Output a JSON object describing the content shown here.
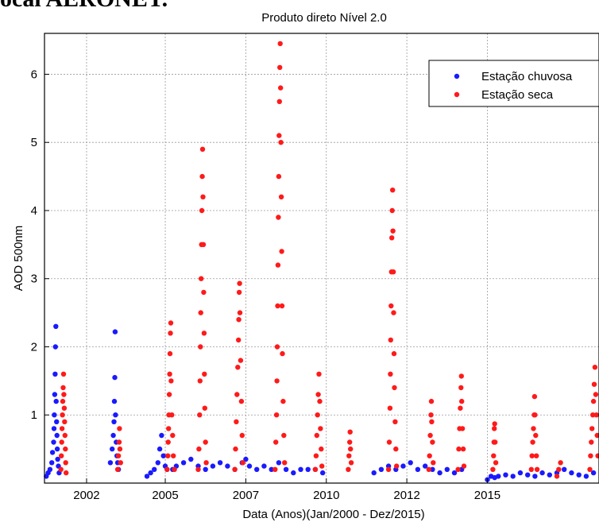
{
  "caption_fragment": "ocal AERONET.",
  "chart_data": {
    "type": "scatter",
    "title": "Produto direto Nível 2.0",
    "xlabel": "Data (Anos)(Jan/2000 - Dez/2015)",
    "ylabel": "AOD 500nm",
    "xlim": [
      2000.4,
      2015.55
    ],
    "ylim": [
      0,
      6.6
    ],
    "x_ticks": [
      {
        "value": 2001.55,
        "label": "2002"
      },
      {
        "value": 2003.7,
        "label": "2005"
      },
      {
        "value": 2005.9,
        "label": "2007"
      },
      {
        "value": 2008.1,
        "label": "2010"
      },
      {
        "value": 2010.3,
        "label": "2012"
      },
      {
        "value": 2012.5,
        "label": "2015"
      }
    ],
    "y_ticks": [
      1,
      2,
      3,
      4,
      5,
      6
    ],
    "grid": true,
    "legend_position": "top-right",
    "colors": {
      "rainy": "#1a1aff",
      "dry": "#ff1a1a"
    },
    "series": [
      {
        "name": "Estação chuvosa",
        "color": "#1a1aff",
        "points": [
          [
            2000.45,
            0.1
          ],
          [
            2000.5,
            0.15
          ],
          [
            2000.55,
            0.2
          ],
          [
            2000.6,
            0.3
          ],
          [
            2000.62,
            0.45
          ],
          [
            2000.65,
            0.6
          ],
          [
            2000.66,
            0.8
          ],
          [
            2000.67,
            1.0
          ],
          [
            2000.68,
            1.3
          ],
          [
            2000.69,
            1.6
          ],
          [
            2000.7,
            2.0
          ],
          [
            2000.71,
            2.3
          ],
          [
            2000.72,
            1.2
          ],
          [
            2000.73,
            0.9
          ],
          [
            2000.74,
            0.7
          ],
          [
            2000.75,
            0.5
          ],
          [
            2000.76,
            0.35
          ],
          [
            2000.78,
            0.25
          ],
          [
            2000.8,
            0.15
          ],
          [
            2002.2,
            0.3
          ],
          [
            2002.25,
            0.5
          ],
          [
            2002.28,
            0.7
          ],
          [
            2002.3,
            0.9
          ],
          [
            2002.31,
            1.2
          ],
          [
            2002.32,
            1.55
          ],
          [
            2002.33,
            2.22
          ],
          [
            2002.34,
            1.0
          ],
          [
            2002.36,
            0.6
          ],
          [
            2002.38,
            0.4
          ],
          [
            2002.4,
            0.3
          ],
          [
            2002.42,
            0.2
          ],
          [
            2003.2,
            0.1
          ],
          [
            2003.3,
            0.15
          ],
          [
            2003.4,
            0.2
          ],
          [
            2003.5,
            0.3
          ],
          [
            2003.55,
            0.5
          ],
          [
            2003.6,
            0.7
          ],
          [
            2003.65,
            0.4
          ],
          [
            2003.7,
            0.25
          ],
          [
            2003.75,
            0.2
          ],
          [
            2003.9,
            0.2
          ],
          [
            2004.0,
            0.25
          ],
          [
            2004.2,
            0.3
          ],
          [
            2004.4,
            0.35
          ],
          [
            2004.6,
            0.25
          ],
          [
            2004.8,
            0.2
          ],
          [
            2005.0,
            0.25
          ],
          [
            2005.2,
            0.3
          ],
          [
            2005.4,
            0.25
          ],
          [
            2005.6,
            0.2
          ],
          [
            2005.8,
            0.3
          ],
          [
            2005.9,
            0.35
          ],
          [
            2006.0,
            0.25
          ],
          [
            2006.2,
            0.2
          ],
          [
            2006.4,
            0.25
          ],
          [
            2006.6,
            0.2
          ],
          [
            2006.8,
            0.3
          ],
          [
            2007.0,
            0.2
          ],
          [
            2007.2,
            0.15
          ],
          [
            2007.4,
            0.2
          ],
          [
            2007.6,
            0.2
          ],
          [
            2007.8,
            0.2
          ],
          [
            2008.0,
            0.15
          ],
          [
            2009.4,
            0.15
          ],
          [
            2009.6,
            0.2
          ],
          [
            2009.8,
            0.25
          ],
          [
            2010.0,
            0.2
          ],
          [
            2010.2,
            0.25
          ],
          [
            2010.4,
            0.3
          ],
          [
            2010.6,
            0.2
          ],
          [
            2010.8,
            0.25
          ],
          [
            2011.0,
            0.2
          ],
          [
            2011.2,
            0.15
          ],
          [
            2011.4,
            0.2
          ],
          [
            2011.6,
            0.15
          ],
          [
            2011.8,
            0.2
          ],
          [
            2012.5,
            0.05
          ],
          [
            2012.6,
            0.1
          ],
          [
            2012.7,
            0.08
          ],
          [
            2012.8,
            0.1
          ],
          [
            2013.0,
            0.12
          ],
          [
            2013.2,
            0.1
          ],
          [
            2013.4,
            0.15
          ],
          [
            2013.6,
            0.12
          ],
          [
            2013.8,
            0.1
          ],
          [
            2014.0,
            0.15
          ],
          [
            2014.2,
            0.12
          ],
          [
            2014.4,
            0.15
          ],
          [
            2014.6,
            0.2
          ],
          [
            2014.8,
            0.15
          ],
          [
            2015.0,
            0.12
          ],
          [
            2015.2,
            0.1
          ],
          [
            2015.4,
            0.15
          ]
        ]
      },
      {
        "name": "Estação seca",
        "color": "#ff1a1a",
        "points": [
          [
            2000.85,
            0.2
          ],
          [
            2000.86,
            0.4
          ],
          [
            2000.87,
            0.6
          ],
          [
            2000.88,
            0.8
          ],
          [
            2000.89,
            1.0
          ],
          [
            2000.9,
            1.2
          ],
          [
            2000.91,
            1.4
          ],
          [
            2000.92,
            1.6
          ],
          [
            2000.93,
            1.3
          ],
          [
            2000.94,
            1.1
          ],
          [
            2000.95,
            0.9
          ],
          [
            2000.96,
            0.7
          ],
          [
            2000.97,
            0.5
          ],
          [
            2000.98,
            0.3
          ],
          [
            2000.99,
            0.15
          ],
          [
            2002.4,
            0.2
          ],
          [
            2002.42,
            0.4
          ],
          [
            2002.44,
            0.6
          ],
          [
            2002.45,
            0.8
          ],
          [
            2002.46,
            0.5
          ],
          [
            2002.48,
            0.3
          ],
          [
            2003.75,
            0.2
          ],
          [
            2003.77,
            0.4
          ],
          [
            2003.78,
            0.6
          ],
          [
            2003.79,
            0.8
          ],
          [
            2003.8,
            1.0
          ],
          [
            2003.81,
            1.3
          ],
          [
            2003.82,
            1.6
          ],
          [
            2003.83,
            1.9
          ],
          [
            2003.84,
            2.2
          ],
          [
            2003.85,
            2.35
          ],
          [
            2003.86,
            1.5
          ],
          [
            2003.88,
            1.0
          ],
          [
            2003.9,
            0.7
          ],
          [
            2003.92,
            0.4
          ],
          [
            2003.95,
            0.2
          ],
          [
            2004.6,
            0.2
          ],
          [
            2004.62,
            0.5
          ],
          [
            2004.64,
            1.0
          ],
          [
            2004.65,
            1.5
          ],
          [
            2004.66,
            2.0
          ],
          [
            2004.67,
            2.5
          ],
          [
            2004.68,
            3.0
          ],
          [
            2004.69,
            3.5
          ],
          [
            2004.7,
            4.0
          ],
          [
            2004.71,
            4.5
          ],
          [
            2004.72,
            4.9
          ],
          [
            2004.73,
            4.2
          ],
          [
            2004.74,
            3.5
          ],
          [
            2004.75,
            2.8
          ],
          [
            2004.76,
            2.2
          ],
          [
            2004.77,
            1.6
          ],
          [
            2004.78,
            1.1
          ],
          [
            2004.8,
            0.6
          ],
          [
            2004.82,
            0.3
          ],
          [
            2005.6,
            0.2
          ],
          [
            2005.62,
            0.5
          ],
          [
            2005.64,
            0.9
          ],
          [
            2005.66,
            1.3
          ],
          [
            2005.68,
            1.7
          ],
          [
            2005.7,
            2.1
          ],
          [
            2005.71,
            2.4
          ],
          [
            2005.72,
            2.8
          ],
          [
            2005.73,
            2.93
          ],
          [
            2005.74,
            2.5
          ],
          [
            2005.76,
            1.8
          ],
          [
            2005.78,
            1.2
          ],
          [
            2005.8,
            0.7
          ],
          [
            2005.82,
            0.3
          ],
          [
            2006.7,
            0.2
          ],
          [
            2006.72,
            0.6
          ],
          [
            2006.74,
            1.0
          ],
          [
            2006.75,
            1.5
          ],
          [
            2006.76,
            2.0
          ],
          [
            2006.77,
            2.6
          ],
          [
            2006.78,
            3.2
          ],
          [
            2006.79,
            3.9
          ],
          [
            2006.8,
            4.5
          ],
          [
            2006.81,
            5.1
          ],
          [
            2006.82,
            5.6
          ],
          [
            2006.83,
            6.1
          ],
          [
            2006.84,
            6.45
          ],
          [
            2006.85,
            5.8
          ],
          [
            2006.86,
            5.0
          ],
          [
            2006.87,
            4.2
          ],
          [
            2006.88,
            3.4
          ],
          [
            2006.89,
            2.6
          ],
          [
            2006.9,
            1.9
          ],
          [
            2006.92,
            1.2
          ],
          [
            2006.94,
            0.7
          ],
          [
            2006.96,
            0.3
          ],
          [
            2007.8,
            0.2
          ],
          [
            2007.82,
            0.4
          ],
          [
            2007.84,
            0.7
          ],
          [
            2007.86,
            1.0
          ],
          [
            2007.88,
            1.3
          ],
          [
            2007.9,
            1.6
          ],
          [
            2007.92,
            1.2
          ],
          [
            2007.94,
            0.8
          ],
          [
            2007.96,
            0.5
          ],
          [
            2007.98,
            0.25
          ],
          [
            2008.7,
            0.2
          ],
          [
            2008.72,
            0.4
          ],
          [
            2008.74,
            0.6
          ],
          [
            2008.75,
            0.75
          ],
          [
            2008.76,
            0.5
          ],
          [
            2008.78,
            0.3
          ],
          [
            2009.8,
            0.2
          ],
          [
            2009.82,
            0.6
          ],
          [
            2009.84,
            1.1
          ],
          [
            2009.85,
            1.6
          ],
          [
            2009.86,
            2.1
          ],
          [
            2009.87,
            2.6
          ],
          [
            2009.88,
            3.1
          ],
          [
            2009.89,
            3.6
          ],
          [
            2009.9,
            4.0
          ],
          [
            2009.91,
            4.3
          ],
          [
            2009.92,
            3.7
          ],
          [
            2009.93,
            3.1
          ],
          [
            2009.94,
            2.5
          ],
          [
            2009.95,
            1.9
          ],
          [
            2009.96,
            1.4
          ],
          [
            2009.98,
            0.9
          ],
          [
            2010.0,
            0.5
          ],
          [
            2010.02,
            0.25
          ],
          [
            2010.9,
            0.2
          ],
          [
            2010.92,
            0.4
          ],
          [
            2010.94,
            0.7
          ],
          [
            2010.96,
            1.0
          ],
          [
            2010.97,
            1.2
          ],
          [
            2010.98,
            0.9
          ],
          [
            2011.0,
            0.6
          ],
          [
            2011.02,
            0.3
          ],
          [
            2011.7,
            0.2
          ],
          [
            2011.72,
            0.5
          ],
          [
            2011.74,
            0.8
          ],
          [
            2011.76,
            1.1
          ],
          [
            2011.78,
            1.4
          ],
          [
            2011.79,
            1.57
          ],
          [
            2011.8,
            1.2
          ],
          [
            2011.82,
            0.8
          ],
          [
            2011.84,
            0.5
          ],
          [
            2011.86,
            0.25
          ],
          [
            2012.65,
            0.2
          ],
          [
            2012.67,
            0.4
          ],
          [
            2012.68,
            0.6
          ],
          [
            2012.69,
            0.8
          ],
          [
            2012.7,
            0.87
          ],
          [
            2012.71,
            0.6
          ],
          [
            2012.73,
            0.3
          ],
          [
            2013.7,
            0.2
          ],
          [
            2013.72,
            0.4
          ],
          [
            2013.74,
            0.6
          ],
          [
            2013.76,
            0.8
          ],
          [
            2013.78,
            1.0
          ],
          [
            2013.79,
            1.27
          ],
          [
            2013.8,
            1.0
          ],
          [
            2013.82,
            0.7
          ],
          [
            2013.84,
            0.4
          ],
          [
            2013.86,
            0.2
          ],
          [
            2014.4,
            0.1
          ],
          [
            2014.45,
            0.2
          ],
          [
            2014.5,
            0.3
          ],
          [
            2015.3,
            0.2
          ],
          [
            2015.32,
            0.4
          ],
          [
            2015.34,
            0.6
          ],
          [
            2015.36,
            0.8
          ],
          [
            2015.38,
            1.0
          ],
          [
            2015.4,
            1.2
          ],
          [
            2015.42,
            1.45
          ],
          [
            2015.44,
            1.7
          ],
          [
            2015.46,
            1.3
          ],
          [
            2015.48,
            1.0
          ],
          [
            2015.5,
            0.7
          ],
          [
            2015.52,
            0.4
          ]
        ]
      }
    ]
  }
}
